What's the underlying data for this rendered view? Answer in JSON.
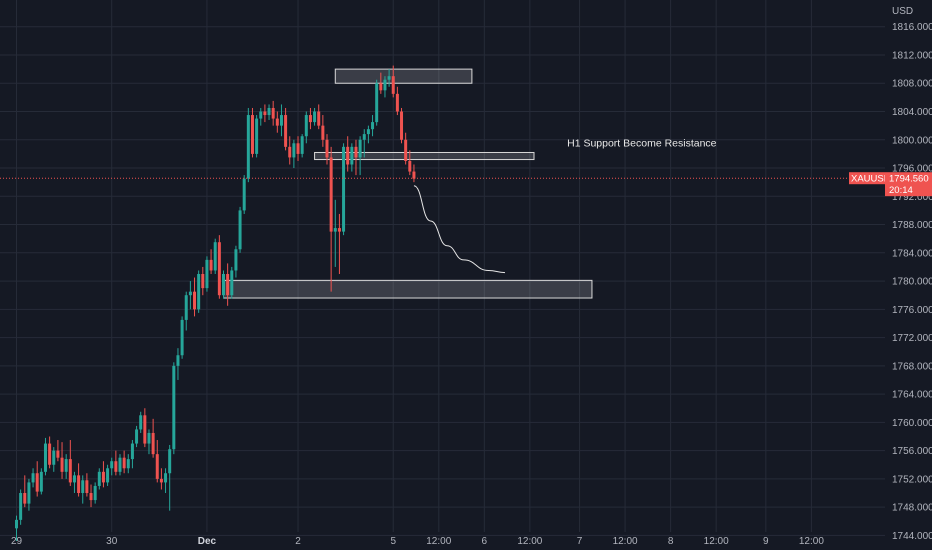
{
  "chart_data": {
    "type": "candlestick",
    "symbol": "XAUUSD",
    "currency_label": "USD",
    "last_price": "1794.560",
    "countdown": "20:14",
    "ylim": [
      1742.5,
      1819.5
    ],
    "y_ticks": [
      "1744.000",
      "1748.000",
      "1752.000",
      "1756.000",
      "1760.000",
      "1764.000",
      "1768.000",
      "1772.000",
      "1776.000",
      "1780.000",
      "1784.000",
      "1788.000",
      "1792.000",
      "1796.000",
      "1800.000",
      "1804.000",
      "1808.000",
      "1812.000",
      "1816.000"
    ],
    "x_ticks": [
      {
        "label": "29",
        "i": 0,
        "bold": false
      },
      {
        "label": "30",
        "i": 23,
        "bold": false
      },
      {
        "label": "Dec",
        "i": 46,
        "bold": true
      },
      {
        "label": "2",
        "i": 68,
        "bold": false
      },
      {
        "label": "5",
        "i": 91,
        "bold": false
      },
      {
        "label": "12:00",
        "i": 102,
        "bold": false
      },
      {
        "label": "6",
        "i": 113,
        "bold": false
      },
      {
        "label": "12:00",
        "i": 124,
        "bold": false
      },
      {
        "label": "7",
        "i": 136,
        "bold": false
      },
      {
        "label": "12:00",
        "i": 147,
        "bold": false
      },
      {
        "label": "8",
        "i": 158,
        "bold": false
      },
      {
        "label": "12:00",
        "i": 169,
        "bold": false
      },
      {
        "label": "9",
        "i": 181,
        "bold": false
      },
      {
        "label": "12:00",
        "i": 192,
        "bold": false
      }
    ],
    "candles": [
      [
        1745.0,
        1746.8,
        1743.2,
        1746.2
      ],
      [
        1746.2,
        1750.5,
        1745.5,
        1750.0
      ],
      [
        1750.0,
        1752.5,
        1748.0,
        1748.5
      ],
      [
        1748.5,
        1752.0,
        1747.5,
        1751.5
      ],
      [
        1751.5,
        1753.5,
        1750.8,
        1752.8
      ],
      [
        1752.8,
        1754.5,
        1749.5,
        1750.2
      ],
      [
        1750.2,
        1753.5,
        1749.8,
        1753.0
      ],
      [
        1753.0,
        1757.8,
        1752.5,
        1757.0
      ],
      [
        1757.0,
        1758.0,
        1753.5,
        1754.0
      ],
      [
        1754.0,
        1756.5,
        1753.0,
        1756.0
      ],
      [
        1756.0,
        1757.5,
        1754.5,
        1755.0
      ],
      [
        1755.0,
        1757.2,
        1752.0,
        1753.0
      ],
      [
        1753.0,
        1755.5,
        1752.0,
        1754.8
      ],
      [
        1754.8,
        1757.5,
        1751.0,
        1751.5
      ],
      [
        1751.5,
        1753.0,
        1750.0,
        1752.5
      ],
      [
        1752.5,
        1754.2,
        1749.5,
        1750.0
      ],
      [
        1750.0,
        1752.5,
        1748.5,
        1751.8
      ],
      [
        1751.8,
        1752.8,
        1749.5,
        1750.0
      ],
      [
        1750.0,
        1751.2,
        1748.0,
        1749.0
      ],
      [
        1749.0,
        1751.5,
        1748.5,
        1751.0
      ],
      [
        1751.0,
        1753.5,
        1750.5,
        1753.0
      ],
      [
        1753.0,
        1754.5,
        1750.8,
        1751.5
      ],
      [
        1751.5,
        1754.0,
        1751.0,
        1753.5
      ],
      [
        1753.5,
        1755.0,
        1752.5,
        1754.5
      ],
      [
        1754.5,
        1756.0,
        1752.5,
        1753.0
      ],
      [
        1753.0,
        1755.5,
        1752.5,
        1755.0
      ],
      [
        1755.0,
        1756.0,
        1752.8,
        1753.5
      ],
      [
        1753.5,
        1755.5,
        1752.8,
        1754.8
      ],
      [
        1754.8,
        1757.5,
        1753.5,
        1757.0
      ],
      [
        1757.0,
        1759.5,
        1756.5,
        1759.0
      ],
      [
        1759.0,
        1761.5,
        1758.5,
        1761.0
      ],
      [
        1761.0,
        1762.0,
        1756.5,
        1757.0
      ],
      [
        1757.0,
        1759.0,
        1755.5,
        1758.5
      ],
      [
        1758.5,
        1760.5,
        1755.0,
        1755.5
      ],
      [
        1755.5,
        1757.5,
        1751.5,
        1752.0
      ],
      [
        1752.0,
        1753.5,
        1750.5,
        1751.5
      ],
      [
        1751.5,
        1753.5,
        1750.0,
        1752.8
      ],
      [
        1752.8,
        1756.8,
        1747.5,
        1756.2
      ],
      [
        1756.2,
        1768.5,
        1755.5,
        1768.0
      ],
      [
        1768.0,
        1770.5,
        1766.0,
        1769.5
      ],
      [
        1769.5,
        1775.0,
        1769.0,
        1774.5
      ],
      [
        1774.5,
        1778.5,
        1773.0,
        1778.0
      ],
      [
        1778.0,
        1780.0,
        1776.0,
        1778.5
      ],
      [
        1778.5,
        1780.5,
        1775.0,
        1776.0
      ],
      [
        1776.0,
        1781.5,
        1775.5,
        1781.0
      ],
      [
        1781.0,
        1782.0,
        1778.0,
        1779.0
      ],
      [
        1779.0,
        1783.5,
        1778.5,
        1783.0
      ],
      [
        1783.0,
        1784.5,
        1781.0,
        1781.5
      ],
      [
        1781.5,
        1786.0,
        1781.0,
        1785.5
      ],
      [
        1785.5,
        1786.5,
        1777.5,
        1778.0
      ],
      [
        1778.0,
        1781.5,
        1777.5,
        1781.0
      ],
      [
        1781.0,
        1782.5,
        1776.5,
        1778.0
      ],
      [
        1778.0,
        1782.0,
        1777.5,
        1781.5
      ],
      [
        1781.5,
        1785.0,
        1780.5,
        1784.5
      ],
      [
        1784.5,
        1790.5,
        1784.0,
        1790.0
      ],
      [
        1790.0,
        1795.0,
        1789.5,
        1794.5
      ],
      [
        1794.5,
        1804.5,
        1794.0,
        1803.5
      ],
      [
        1803.5,
        1804.5,
        1797.5,
        1798.0
      ],
      [
        1798.0,
        1803.5,
        1797.5,
        1803.0
      ],
      [
        1803.0,
        1804.5,
        1802.0,
        1804.0
      ],
      [
        1804.0,
        1805.0,
        1802.5,
        1803.5
      ],
      [
        1803.5,
        1805.0,
        1802.8,
        1804.5
      ],
      [
        1804.5,
        1805.5,
        1802.0,
        1803.0
      ],
      [
        1803.0,
        1804.0,
        1801.0,
        1802.0
      ],
      [
        1802.0,
        1805.0,
        1800.5,
        1803.5
      ],
      [
        1803.5,
        1804.5,
        1798.5,
        1799.0
      ],
      [
        1799.0,
        1800.5,
        1796.5,
        1797.5
      ],
      [
        1797.5,
        1800.0,
        1796.0,
        1799.5
      ],
      [
        1799.5,
        1800.5,
        1797.0,
        1798.0
      ],
      [
        1798.0,
        1800.8,
        1797.5,
        1800.5
      ],
      [
        1800.5,
        1804.0,
        1799.5,
        1803.5
      ],
      [
        1803.5,
        1804.5,
        1801.5,
        1802.5
      ],
      [
        1802.5,
        1804.5,
        1802.0,
        1804.0
      ],
      [
        1804.0,
        1805.0,
        1801.5,
        1802.0
      ],
      [
        1802.0,
        1803.5,
        1799.0,
        1800.0
      ],
      [
        1800.0,
        1800.8,
        1796.5,
        1797.5
      ],
      [
        1797.5,
        1799.0,
        1778.5,
        1787.0
      ],
      [
        1787.0,
        1791.5,
        1782.0,
        1787.5
      ],
      [
        1787.5,
        1789.5,
        1781.0,
        1787.0
      ],
      [
        1787.0,
        1799.5,
        1786.5,
        1799.0
      ],
      [
        1799.0,
        1800.5,
        1795.5,
        1796.5
      ],
      [
        1796.5,
        1799.5,
        1795.5,
        1799.0
      ],
      [
        1799.0,
        1800.0,
        1795.0,
        1797.5
      ],
      [
        1797.5,
        1800.5,
        1795.0,
        1800.0
      ],
      [
        1800.0,
        1801.5,
        1797.5,
        1800.8
      ],
      [
        1800.8,
        1802.0,
        1799.5,
        1801.5
      ],
      [
        1801.5,
        1803.5,
        1800.5,
        1802.5
      ],
      [
        1802.5,
        1808.5,
        1802.0,
        1808.0
      ],
      [
        1808.0,
        1809.5,
        1806.5,
        1807.0
      ],
      [
        1807.0,
        1809.0,
        1806.0,
        1808.5
      ],
      [
        1808.5,
        1810.0,
        1807.5,
        1809.0
      ],
      [
        1809.0,
        1810.5,
        1806.0,
        1806.5
      ],
      [
        1806.5,
        1807.5,
        1803.5,
        1804.0
      ],
      [
        1804.0,
        1804.5,
        1799.5,
        1800.0
      ],
      [
        1800.0,
        1801.0,
        1796.5,
        1797.0
      ],
      [
        1797.0,
        1798.5,
        1795.0,
        1795.5
      ],
      [
        1795.5,
        1796.5,
        1794.0,
        1794.5
      ]
    ],
    "zones": [
      {
        "i0": 77,
        "i1": 110,
        "low": 1808.0,
        "high": 1810.0
      },
      {
        "i0": 72,
        "i1": 125,
        "low": 1797.2,
        "high": 1798.2
      },
      {
        "i0": 50,
        "i1": 139,
        "low": 1777.6,
        "high": 1780.1
      }
    ],
    "annotation": "H1 Support Become Resistance",
    "projection": [
      [
        96,
        1793.5
      ],
      [
        100,
        1788.5
      ],
      [
        104,
        1785.0
      ],
      [
        108,
        1783.0
      ],
      [
        114,
        1781.5
      ],
      [
        118,
        1781.2
      ]
    ]
  },
  "colors": {
    "background": "#151924",
    "up": "#26a69a",
    "down": "#ef5350",
    "grid": "#262b38",
    "zone_stroke": "#d9d9d9",
    "zone_fill": "rgba(255,255,255,0.16)",
    "price_line": "#ef5350"
  }
}
